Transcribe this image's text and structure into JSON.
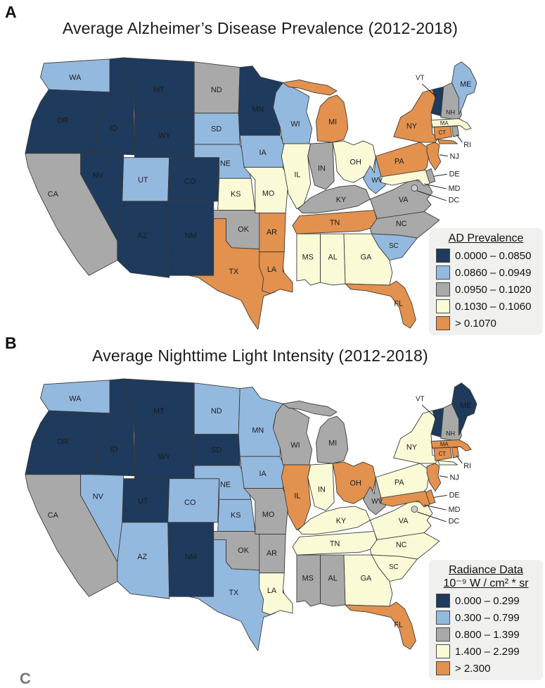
{
  "figure": {
    "map_type": "choropleth",
    "region": "United States (contiguous states + DC)",
    "category_colors": {
      "1": "#1E3A5C",
      "2": "#94B9DF",
      "3": "#A9A9A9",
      "4": "#FAFAD7",
      "5": "#E2914E"
    },
    "state_border_color": "#3A3A3A",
    "dc_marker_color": "#CDCDCD",
    "panels": [
      {
        "panel_label": "A",
        "title": "Average Alzheimer’s Disease Prevalence (2012-2018)",
        "legend": {
          "title_lines": [
            "AD Prevalence"
          ],
          "items": [
            {
              "category": "1",
              "label": "0.0000 – 0.0850"
            },
            {
              "category": "2",
              "label": "0.0860 – 0.0949"
            },
            {
              "category": "3",
              "label": "0.0950 – 0.1020"
            },
            {
              "category": "4",
              "label": "0.1030 – 0.1060"
            },
            {
              "category": "5",
              "label": "> 0.1070"
            }
          ]
        },
        "state_categories": {
          "1": [
            "OR",
            "ID",
            "MT",
            "WY",
            "NV",
            "CO",
            "AZ",
            "NM",
            "MN",
            "VT"
          ],
          "2": [
            "WA",
            "UT",
            "SD",
            "NE",
            "IA",
            "WI",
            "WV",
            "SC",
            "ME"
          ],
          "3": [
            "CA",
            "ND",
            "OK",
            "IN",
            "KY",
            "VA",
            "NC",
            "NH",
            "RI",
            "DE"
          ],
          "4": [
            "KS",
            "MO",
            "IL",
            "OH",
            "MS",
            "AL",
            "GA",
            "MA",
            "MD"
          ],
          "5": [
            "TX",
            "AR",
            "LA",
            "MI",
            "TN",
            "FL",
            "NY",
            "PA",
            "NJ",
            "CT"
          ]
        }
      },
      {
        "panel_label": "B",
        "title": "Average Nighttime Light Intensity (2012-2018)",
        "legend": {
          "title_lines": [
            "Radiance Data",
            "10⁻⁹ W / cm² * sr"
          ],
          "items": [
            {
              "category": "1",
              "label": "0.000 – 0.299"
            },
            {
              "category": "2",
              "label": "0.300 – 0.799"
            },
            {
              "category": "3",
              "label": "0.800 – 1.399"
            },
            {
              "category": "4",
              "label": "1.400 – 2.299"
            },
            {
              "category": "5",
              "label": "> 2.300"
            }
          ]
        },
        "state_categories": {
          "1": [
            "OR",
            "ID",
            "MT",
            "WY",
            "UT",
            "SD",
            "NM",
            "VT",
            "ME"
          ],
          "2": [
            "WA",
            "NV",
            "AZ",
            "CO",
            "ND",
            "NE",
            "KS",
            "TX",
            "MN",
            "IA"
          ],
          "3": [
            "CA",
            "OK",
            "MO",
            "AR",
            "MS",
            "AL",
            "WI",
            "MI",
            "WV",
            "NH"
          ],
          "4": [
            "LA",
            "IN",
            "KY",
            "TN",
            "GA",
            "SC",
            "NC",
            "VA",
            "NY",
            "PA"
          ],
          "5": [
            "IL",
            "OH",
            "FL",
            "MA",
            "CT",
            "RI",
            "NJ",
            "DE",
            "MD"
          ]
        }
      }
    ],
    "partial_next_panel_label": "C"
  }
}
